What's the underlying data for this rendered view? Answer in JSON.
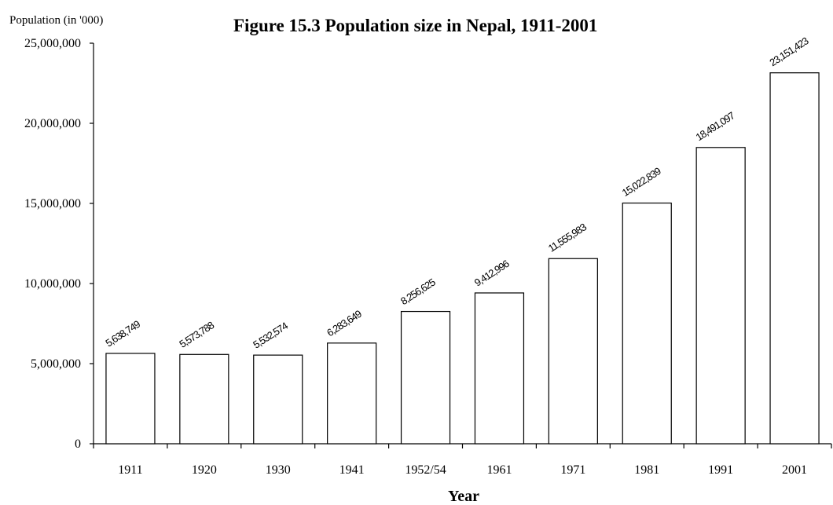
{
  "chart_data": {
    "type": "bar",
    "title": "Figure 15.3  Population size in Nepal, 1911-2001",
    "ylabel": "Population (in '000)",
    "xlabel": "Year",
    "categories": [
      "1911",
      "1920",
      "1930",
      "1941",
      "1952/54",
      "1961",
      "1971",
      "1981",
      "1991",
      "2001"
    ],
    "values": [
      5638749,
      5573788,
      5532574,
      6283649,
      8256625,
      9412996,
      11555983,
      15022839,
      18491097,
      23151423
    ],
    "data_labels": [
      "5,638,749",
      "5,573,788",
      "5,532,574",
      "6,283,649",
      "8,256,625",
      "9,412,996",
      "11,555,983",
      "15,022,839",
      "18,491,097",
      "23,151,423"
    ],
    "ylim": [
      0,
      25000000
    ],
    "yticks": [
      0,
      5000000,
      10000000,
      15000000,
      20000000,
      25000000
    ],
    "ytick_labels": [
      "0",
      "5,000,000",
      "10,000,000",
      "15,000,000",
      "20,000,000",
      "25,000,000"
    ],
    "grid": false,
    "legend": "none",
    "colors": {
      "bar_fill": "#ffffff",
      "bar_stroke": "#000000"
    }
  }
}
